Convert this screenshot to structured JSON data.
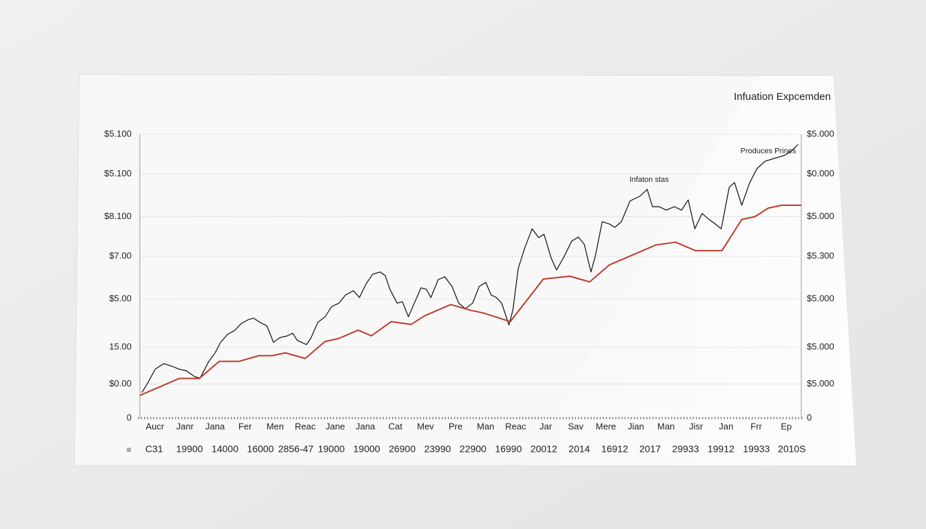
{
  "chart_data": {
    "type": "line",
    "title": "Infuation Expcemden",
    "xlim": [
      0,
      100
    ],
    "ylim": [
      0,
      100
    ],
    "yticks": [
      {
        "value": 100,
        "label": "$5.100"
      },
      {
        "value": 86,
        "label": "$5.100"
      },
      {
        "value": 71,
        "label": "$8.100"
      },
      {
        "value": 57,
        "label": "$7.00"
      },
      {
        "value": 42,
        "label": "$5.00"
      },
      {
        "value": 25,
        "label": "15.00"
      },
      {
        "value": 12,
        "label": "$0.00"
      },
      0
    ],
    "y2lim": [
      0,
      100
    ],
    "y2ticks": [
      {
        "value": 100,
        "label": "$5.000"
      },
      {
        "value": 86,
        "label": "$0.000"
      },
      {
        "value": 71,
        "label": "$5.000"
      },
      {
        "value": 57,
        "label": "$5.300"
      },
      {
        "value": 42,
        "label": "$5.000"
      },
      {
        "value": 25,
        "label": "$5.000"
      },
      {
        "value": 12,
        "label": "$5.000"
      },
      0
    ],
    "grid": true,
    "categories": [
      "Aucr",
      "Janr",
      "Jana",
      "Fer",
      "Men",
      "Reac",
      "Jane",
      "Jana",
      "Cat",
      "Mev",
      "Pre",
      "Man",
      "Reac",
      "Jar",
      "Sav",
      "Mere",
      "Jian",
      "Man",
      "Jisr",
      "Jan",
      "Frr",
      "Ep"
    ],
    "footer_labels": [
      "C31",
      "19900",
      "14000",
      "16000",
      "2856-47",
      "19000",
      "19000",
      "26900",
      "23990",
      "22900",
      "16990",
      "20012",
      "2014",
      "16912",
      "2017",
      "29933",
      "19912",
      "19933",
      "2010S"
    ],
    "annotations": [
      {
        "text": "Infaton stas",
        "x": 77,
        "y": 84
      },
      {
        "text": "Produces Prines",
        "x": 95,
        "y": 94
      }
    ],
    "series": [
      {
        "color": "#1c1c1c",
        "x": [
          0.3,
          1.2,
          2.3,
          3.6,
          4.7,
          6,
          7,
          8.3,
          9.1,
          10.4,
          11.4,
          12.2,
          13.3,
          14.3,
          15.3,
          16.4,
          17.2,
          18.2,
          19.2,
          20.2,
          21.2,
          22.2,
          23.1,
          23.8,
          25.2,
          25.9,
          26.9,
          28,
          29,
          30.1,
          31.1,
          32.3,
          33.2,
          34.2,
          35.2,
          36.3,
          37.1,
          37.8,
          38.9,
          39.7,
          40.6,
          41.5,
          42.5,
          43.3,
          44,
          45.1,
          46.1,
          47.2,
          48.2,
          49.2,
          50.3,
          51.3,
          52.3,
          53.1,
          53.9,
          54.7,
          55.8,
          56.4,
          57.2,
          58.2,
          59.3,
          60.3,
          61.1,
          62.2,
          63,
          64,
          65.3,
          66.3,
          67.2,
          68.2,
          68.9,
          69.9,
          71,
          71.8,
          72.8,
          74.1,
          75.6,
          76.7,
          77.5,
          78.5,
          79.6,
          80.8,
          81.9,
          82.9,
          83.9,
          85,
          86,
          87,
          87.9,
          89.1,
          89.9,
          91,
          92.2,
          93.3,
          94.5,
          95.9,
          97.4,
          98.4,
          99.5
        ],
        "values": [
          9,
          12.4,
          17.2,
          19.2,
          18.4,
          17.2,
          16.7,
          14.6,
          14.1,
          19.9,
          23.1,
          26.7,
          29.6,
          30.8,
          33.3,
          34.7,
          35.2,
          33.7,
          32.5,
          26.7,
          28.4,
          28.9,
          29.9,
          27.4,
          25.9,
          28.4,
          33.7,
          35.7,
          39.3,
          40.5,
          43.4,
          44.9,
          42.5,
          47.3,
          50.7,
          51.5,
          50.2,
          45.4,
          40.5,
          41,
          35.7,
          40.5,
          45.9,
          45.4,
          42.5,
          48.8,
          49.8,
          46.4,
          40.5,
          38.6,
          40.5,
          46.4,
          47.8,
          43.4,
          42.5,
          40.5,
          32.8,
          38.1,
          52.7,
          60,
          66.7,
          63.6,
          64.8,
          56.3,
          52.2,
          56.3,
          62.4,
          63.8,
          61.2,
          51.5,
          57.5,
          69.2,
          68.4,
          67.2,
          69.2,
          76.5,
          78.2,
          80.6,
          74.5,
          74.5,
          73.3,
          74.5,
          73.3,
          76.9,
          66.7,
          72.1,
          70.1,
          68.4,
          66.7,
          81.3,
          83,
          75,
          83,
          87.9,
          90.5,
          91.5,
          92.5,
          93.9,
          96.4
        ]
      },
      {
        "color": "#c0392b",
        "x": [
          0,
          3,
          6,
          9,
          12,
          15,
          18,
          20,
          22,
          25,
          28,
          30,
          33,
          35,
          38,
          41,
          43,
          47,
          50,
          52,
          56,
          61,
          65,
          68,
          71,
          73,
          76,
          78,
          81,
          84,
          88,
          91,
          93,
          95,
          97,
          100
        ],
        "values": [
          8,
          11,
          14,
          14,
          20,
          20,
          22,
          22,
          23,
          21,
          27,
          28,
          31,
          29,
          34,
          33,
          36,
          40,
          38,
          37,
          34,
          49,
          50,
          48,
          54,
          56,
          59,
          61,
          62,
          59,
          59,
          70,
          71,
          74,
          75,
          75
        ]
      }
    ]
  }
}
